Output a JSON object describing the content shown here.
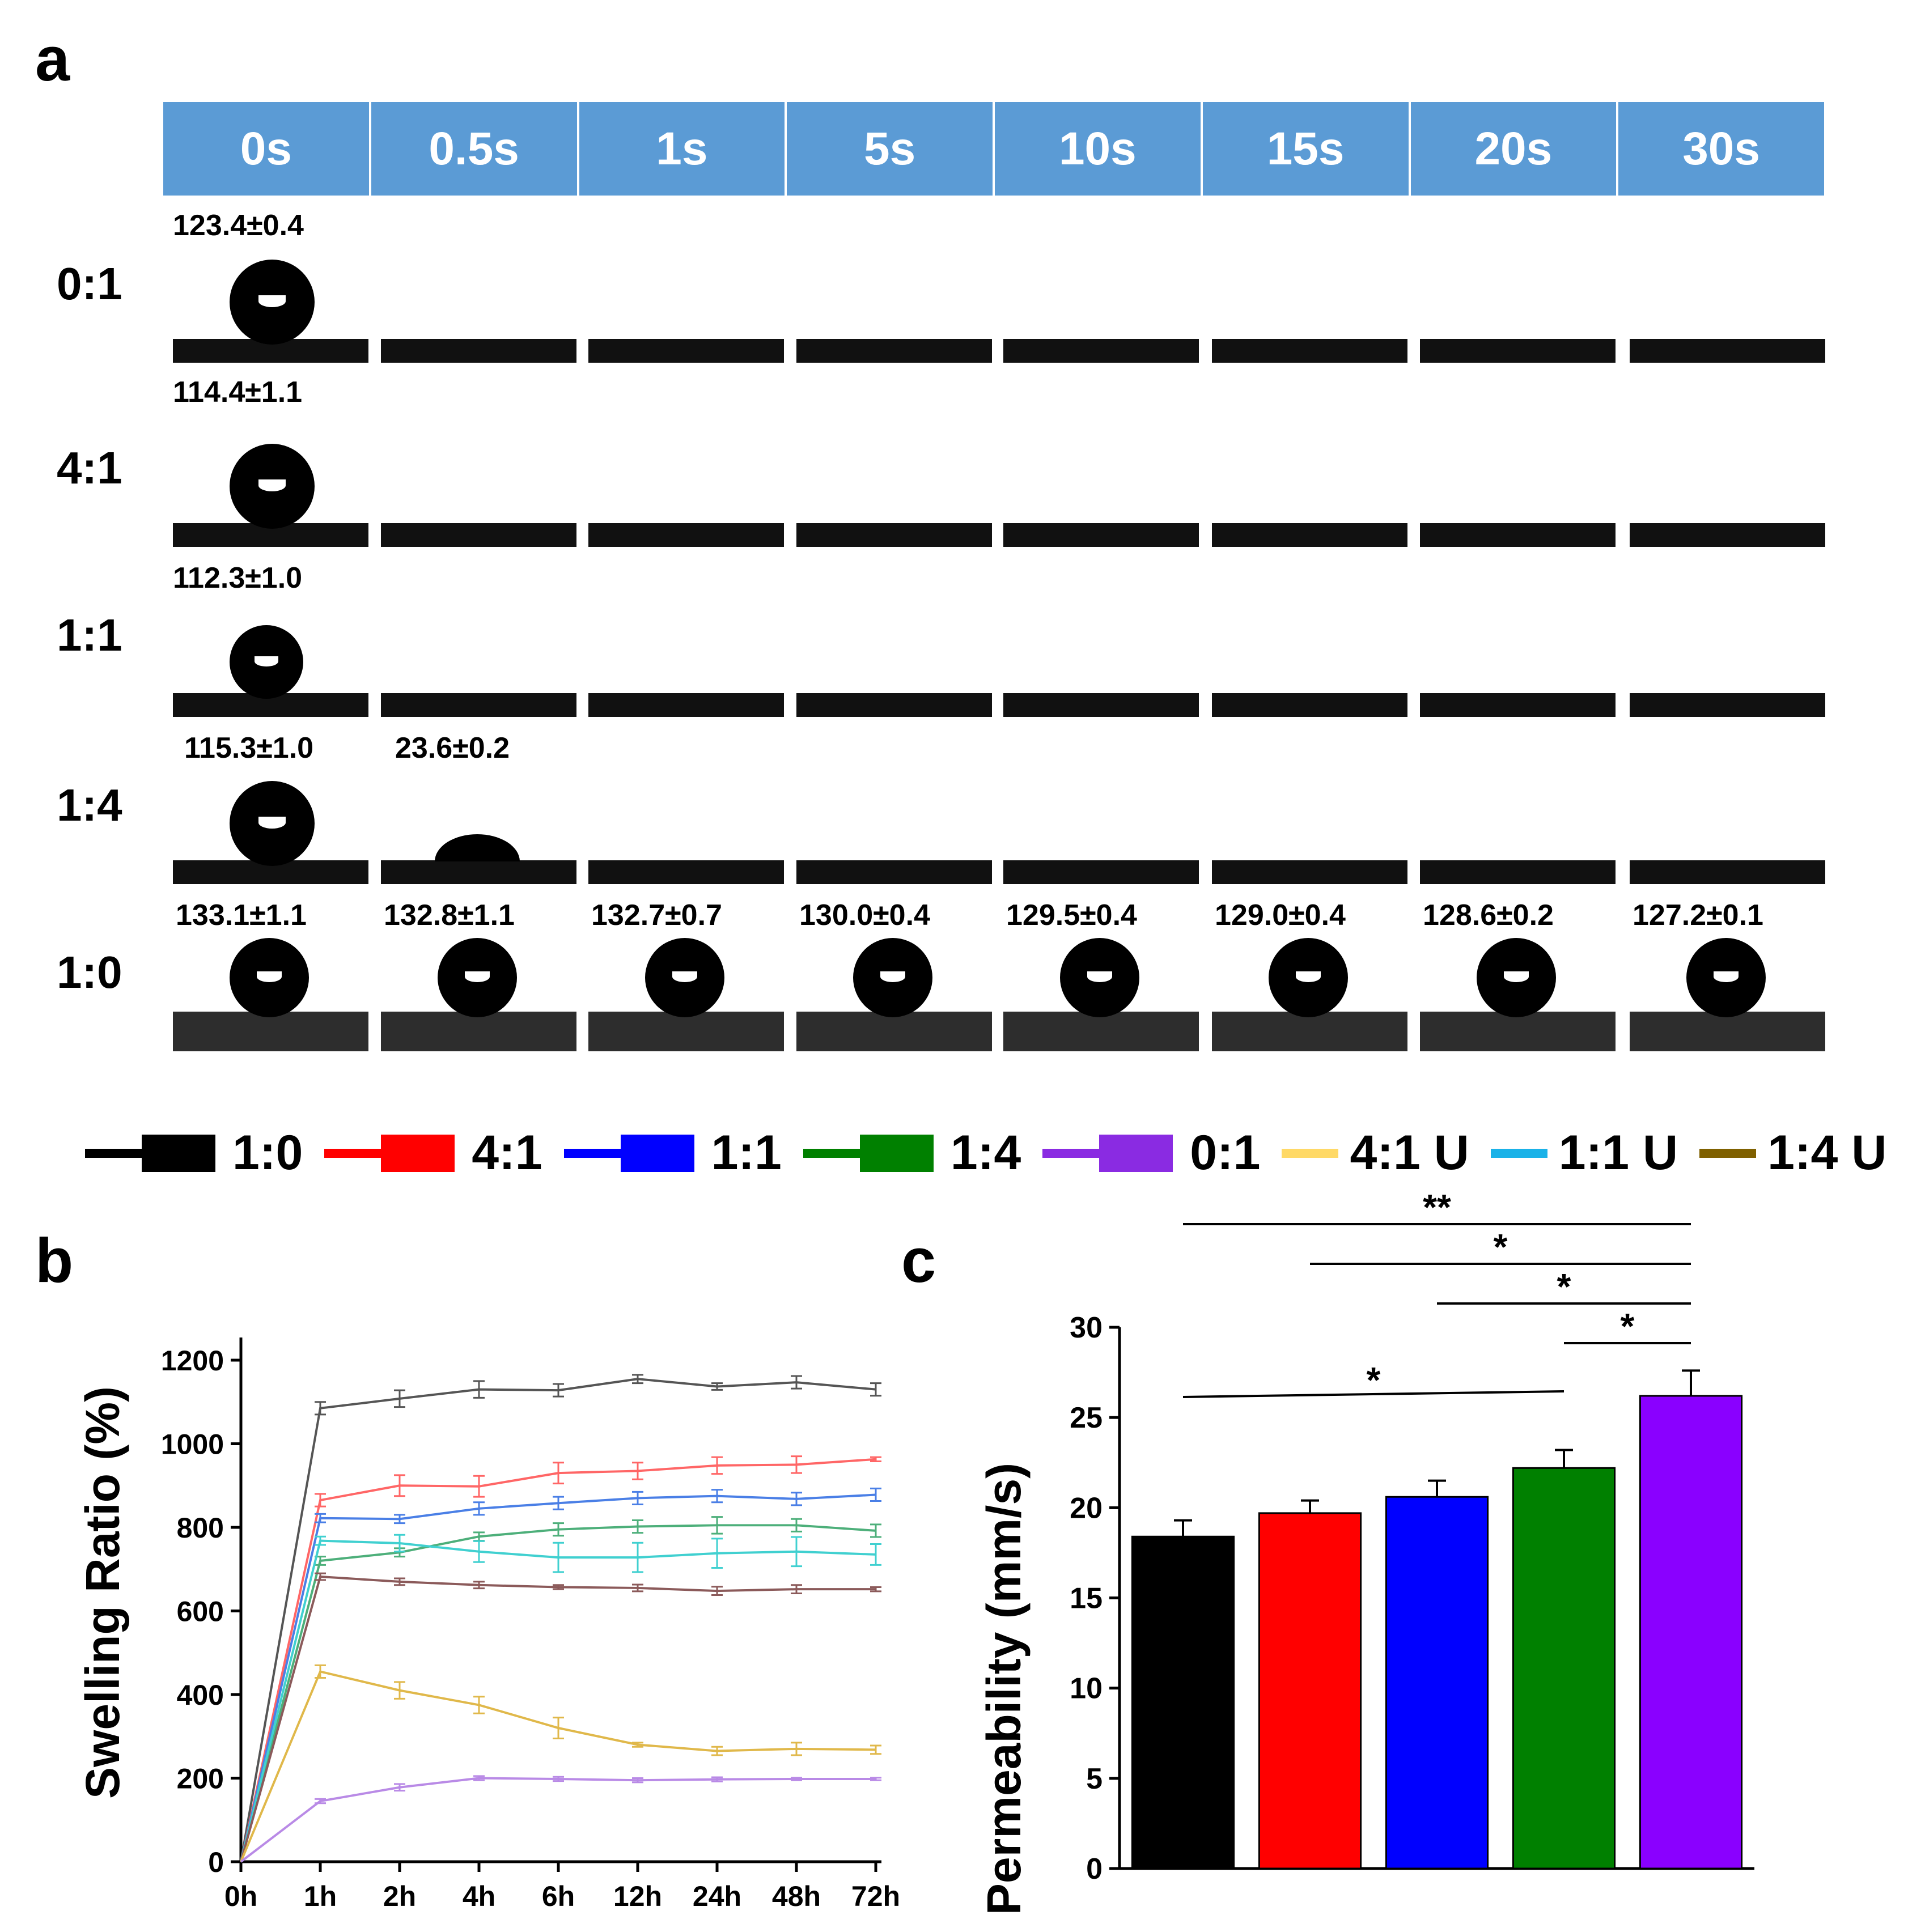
{
  "panels": {
    "a": "a",
    "b": "b",
    "c": "c"
  },
  "panel_a": {
    "time_headers": [
      "0s",
      "0.5s",
      "1s",
      "5s",
      "10s",
      "15s",
      "20s",
      "30s"
    ],
    "rows": [
      {
        "label": "0:1",
        "angles": [
          "123.4±0.4",
          "",
          "",
          "",
          "",
          "",
          "",
          ""
        ]
      },
      {
        "label": "4:1",
        "angles": [
          "114.4±1.1",
          "",
          "",
          "",
          "",
          "",
          "",
          ""
        ]
      },
      {
        "label": "1:1",
        "angles": [
          "112.3±1.0",
          "",
          "",
          "",
          "",
          "",
          "",
          ""
        ]
      },
      {
        "label": "1:4",
        "angles": [
          "115.3±1.0",
          "23.6±0.2",
          "",
          "",
          "",
          "",
          "",
          ""
        ]
      },
      {
        "label": "1:0",
        "angles": [
          "133.1±1.1",
          "132.8±1.1",
          "132.7±0.7",
          "130.0±0.4",
          "129.5±0.4",
          "129.0±0.4",
          "128.6±0.2",
          "127.2±0.1"
        ]
      }
    ]
  },
  "legend": [
    {
      "label": "1:0",
      "color": "#000000",
      "box": true
    },
    {
      "label": "4:1",
      "color": "#ff0000",
      "box": true
    },
    {
      "label": "1:1",
      "color": "#0000ff",
      "box": true
    },
    {
      "label": "1:4",
      "color": "#008000",
      "box": true
    },
    {
      "label": "0:1",
      "color": "#8a2be2",
      "box": true
    },
    {
      "label": "4:1 U",
      "color": "#ffd966",
      "box": false
    },
    {
      "label": "1:1 U",
      "color": "#1ab2e8",
      "box": false
    },
    {
      "label": "1:4 U",
      "color": "#7f6000",
      "box": false
    }
  ],
  "chart_data": [
    {
      "type": "line",
      "panel": "b",
      "title": "",
      "xlabel": "",
      "ylabel": "Swelling Ratio (%)",
      "categories": [
        "0h",
        "1h",
        "2h",
        "4h",
        "6h",
        "12h",
        "24h",
        "48h",
        "72h"
      ],
      "ylim": [
        0,
        1200
      ],
      "yticks": [
        0,
        200,
        400,
        600,
        800,
        1000,
        1200
      ],
      "series": [
        {
          "name": "1:0",
          "color": "#555555",
          "values": [
            0,
            1085,
            1108,
            1130,
            1128,
            1155,
            1137,
            1147,
            1130
          ],
          "err": [
            0,
            15,
            20,
            20,
            15,
            10,
            8,
            15,
            15
          ]
        },
        {
          "name": "4:1",
          "color": "#ff6666",
          "values": [
            0,
            865,
            900,
            898,
            930,
            935,
            948,
            950,
            963
          ],
          "err": [
            0,
            15,
            25,
            25,
            25,
            20,
            20,
            20,
            5
          ]
        },
        {
          "name": "1:1",
          "color": "#4a7fe6",
          "values": [
            0,
            822,
            820,
            845,
            858,
            870,
            875,
            868,
            878
          ],
          "err": [
            0,
            10,
            10,
            15,
            15,
            15,
            15,
            15,
            15
          ]
        },
        {
          "name": "1:4",
          "color": "#4daf7a",
          "values": [
            0,
            720,
            740,
            778,
            795,
            802,
            805,
            805,
            792
          ],
          "err": [
            0,
            10,
            10,
            10,
            15,
            15,
            20,
            15,
            15
          ]
        },
        {
          "name": "1:1 U",
          "color": "#40d0d0",
          "values": [
            0,
            768,
            762,
            742,
            728,
            728,
            738,
            742,
            735
          ],
          "err": [
            0,
            10,
            20,
            25,
            35,
            35,
            35,
            35,
            25
          ]
        },
        {
          "name": "1:4 U",
          "color": "#8b5a5a",
          "values": [
            0,
            682,
            670,
            662,
            657,
            655,
            648,
            652,
            652
          ],
          "err": [
            0,
            8,
            8,
            8,
            5,
            8,
            10,
            10,
            5
          ]
        },
        {
          "name": "4:1 U",
          "color": "#e0b84a",
          "values": [
            0,
            455,
            410,
            375,
            320,
            280,
            265,
            270,
            268
          ],
          "err": [
            0,
            15,
            20,
            20,
            25,
            5,
            10,
            15,
            10
          ]
        },
        {
          "name": "0:1",
          "color": "#b98ae6",
          "values": [
            0,
            145,
            178,
            200,
            198,
            195,
            197,
            198,
            198
          ],
          "err": [
            0,
            5,
            8,
            5,
            5,
            5,
            5,
            3,
            3
          ]
        }
      ]
    },
    {
      "type": "bar",
      "panel": "c",
      "title": "",
      "xlabel": "",
      "ylabel": "Permeability (mm/s)",
      "categories": [
        "1:0",
        "4:1",
        "1:1",
        "1:4",
        "0:1"
      ],
      "values": [
        18.4,
        19.7,
        20.6,
        22.2,
        26.2
      ],
      "err": [
        0.9,
        0.7,
        0.9,
        1.0,
        1.4
      ],
      "colors": [
        "#000000",
        "#ff0000",
        "#0000ff",
        "#008000",
        "#8a00ff"
      ],
      "ylim": [
        0,
        30
      ],
      "yticks": [
        0,
        5,
        10,
        15,
        20,
        25,
        30
      ],
      "significance": [
        {
          "label": "**",
          "from": 0,
          "to": 4
        },
        {
          "label": "*",
          "from": 1,
          "to": 4
        },
        {
          "label": "*",
          "from": 2,
          "to": 4
        },
        {
          "label": "*",
          "from": 3,
          "to": 4
        },
        {
          "label": "*",
          "from": 0,
          "to": 3
        }
      ]
    }
  ]
}
